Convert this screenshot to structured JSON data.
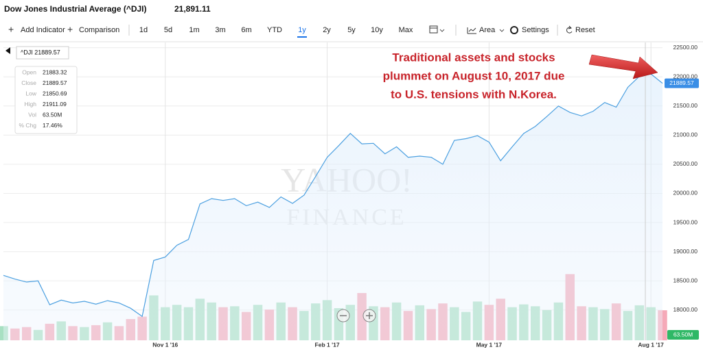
{
  "header": {
    "title": "Dow Jones Industrial Average (^DJI)",
    "price": "21,891.11"
  },
  "toolbar": {
    "add_indicator": "Add Indicator",
    "comparison": "Comparison",
    "ranges": [
      "1d",
      "5d",
      "1m",
      "3m",
      "6m",
      "YTD",
      "1y",
      "2y",
      "5y",
      "10y",
      "Max"
    ],
    "selected_range": "1y",
    "chart_type": "Area",
    "settings": "Settings",
    "reset": "Reset"
  },
  "tooltip": {
    "title": "^DJI 21889.57",
    "rows": [
      [
        "Open",
        "21883.32"
      ],
      [
        "Close",
        "21889.57"
      ],
      [
        "Low",
        "21850.69"
      ],
      [
        "High",
        "21911.09"
      ],
      [
        "Vol",
        "63.50M"
      ],
      [
        "% Chg",
        "17.46%"
      ]
    ]
  },
  "annotation": [
    "Traditional assets and stocks",
    "plummet on August 10, 2017 due",
    "to U.S. tensions with N.Korea."
  ],
  "watermark": [
    "YAHOO!",
    "FINANCE"
  ],
  "chart_data": {
    "type": "area",
    "categories": [
      null,
      null,
      null,
      null,
      null,
      null,
      null,
      null,
      null,
      null,
      null,
      null,
      null,
      null,
      "Nov 1 '16",
      null,
      null,
      null,
      null,
      null,
      null,
      null,
      null,
      null,
      null,
      null,
      null,
      null,
      "Feb 1 '17",
      null,
      null,
      null,
      null,
      null,
      null,
      null,
      null,
      null,
      null,
      null,
      null,
      null,
      "May 1 '17",
      null,
      null,
      null,
      null,
      null,
      null,
      null,
      null,
      null,
      null,
      null,
      null,
      null,
      "Aug 1 '17",
      null
    ],
    "series": [
      {
        "name": "^DJI",
        "color": "#4a9fe0",
        "values": [
          18594,
          18530,
          18480,
          18500,
          18090,
          18170,
          18120,
          18150,
          18100,
          18160,
          18120,
          18030,
          17890,
          18850,
          18910,
          19110,
          19210,
          19820,
          19910,
          19880,
          19910,
          19790,
          19850,
          19760,
          19940,
          19830,
          19970,
          20290,
          20620,
          20820,
          21030,
          20850,
          20860,
          20680,
          20800,
          20620,
          20640,
          20620,
          20500,
          20910,
          20940,
          20990,
          20880,
          20560,
          20800,
          21030,
          21150,
          21320,
          21500,
          21390,
          21330,
          21410,
          21560,
          21480,
          21820,
          22010,
          22050,
          21889.57
        ]
      },
      {
        "name": "Volume",
        "axis": "y2",
        "up_color": "#a8e0c2",
        "down_color": "#f5a9b8",
        "values": [
          30,
          25,
          28,
          22,
          35,
          40,
          30,
          28,
          32,
          38,
          30,
          45,
          50,
          95,
          70,
          75,
          70,
          88,
          80,
          70,
          72,
          60,
          75,
          65,
          80,
          70,
          62,
          78,
          85,
          68,
          75,
          100,
          72,
          70,
          80,
          62,
          74,
          66,
          78,
          70,
          60,
          82,
          75,
          88,
          70,
          76,
          72,
          64,
          80,
          140,
          72,
          70,
          66,
          78,
          62,
          74,
          70,
          63.5
        ],
        "value_labels": [
          null,
          null,
          null,
          null,
          null,
          null,
          null,
          null,
          null,
          null,
          null,
          null,
          null,
          null,
          null,
          null,
          null,
          null,
          null,
          null,
          null,
          null,
          null,
          null,
          null,
          null,
          null,
          null,
          null,
          null,
          null,
          null,
          null,
          null,
          null,
          null,
          null,
          null,
          null,
          null,
          null,
          null,
          null,
          null,
          null,
          null,
          null,
          null,
          null,
          null,
          null,
          null,
          null,
          null,
          null,
          null,
          null,
          "63.50M"
        ]
      }
    ],
    "ylim": [
      17480,
      22590
    ],
    "yticks": [
      {
        "value": 18000,
        "label": "18000.00"
      },
      {
        "value": 18500,
        "label": "18500.00"
      },
      {
        "value": 19000,
        "label": "19000.00"
      },
      {
        "value": 19500,
        "label": "19500.00"
      },
      {
        "value": 20000,
        "label": "20000.00"
      },
      {
        "value": 20500,
        "label": "20500.00"
      },
      {
        "value": 21000,
        "label": "21000.00"
      },
      {
        "value": 21500,
        "label": "21500.00"
      },
      {
        "value": 22000,
        "label": "22000.00"
      },
      {
        "value": 22500,
        "label": "22500.00"
      }
    ],
    "y2lim": [
      0,
      630
    ],
    "grid": true
  }
}
